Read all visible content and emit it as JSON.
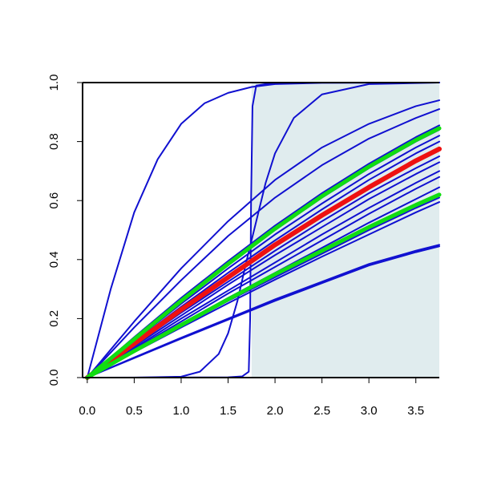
{
  "chart_data": {
    "type": "line",
    "title": "",
    "xlabel": "",
    "ylabel": "",
    "xlim": [
      -0.05,
      3.75
    ],
    "ylim": [
      0,
      1
    ],
    "xticks": [
      0,
      0.5,
      1,
      1.5,
      2,
      2.5,
      3,
      3.5
    ],
    "xtick_labels": [
      "0.0",
      "0.5",
      "1.0",
      "1.5",
      "2.0",
      "2.5",
      "3.0",
      "3.5"
    ],
    "yticks": [
      0,
      0.2,
      0.4,
      0.6,
      0.8,
      1.0
    ],
    "ytick_labels": [
      "0.0",
      "0.2",
      "0.4",
      "0.6",
      "0.8",
      "1.0"
    ],
    "legend": "none",
    "grid": false,
    "shaded_region": {
      "x_from": 1.75,
      "x_to": 3.75,
      "color": "#e0ecee"
    },
    "series_colors": {
      "blue": "#1010d0",
      "red": "#ee1111",
      "green": "#11dd11"
    },
    "series": [
      {
        "color": "blue",
        "points": [
          [
            0,
            0
          ],
          [
            0.25,
            0.3
          ],
          [
            0.5,
            0.56
          ],
          [
            0.75,
            0.74
          ],
          [
            1.0,
            0.86
          ],
          [
            1.25,
            0.93
          ],
          [
            1.5,
            0.965
          ],
          [
            1.75,
            0.985
          ],
          [
            2.0,
            0.995
          ],
          [
            2.5,
            0.999
          ],
          [
            3.75,
            1.0
          ]
        ]
      },
      {
        "color": "blue",
        "points": [
          [
            0,
            0
          ],
          [
            1.5,
            0.001
          ],
          [
            1.65,
            0.004
          ],
          [
            1.72,
            0.02
          ],
          [
            1.735,
            0.2
          ],
          [
            1.745,
            0.6
          ],
          [
            1.76,
            0.92
          ],
          [
            1.8,
            0.99
          ],
          [
            2.0,
            1.0
          ],
          [
            3.75,
            1.0
          ]
        ]
      },
      {
        "color": "blue",
        "points": [
          [
            0,
            0
          ],
          [
            0.5,
            0
          ],
          [
            1.0,
            0.003
          ],
          [
            1.2,
            0.02
          ],
          [
            1.4,
            0.08
          ],
          [
            1.5,
            0.15
          ],
          [
            1.6,
            0.26
          ],
          [
            1.7,
            0.4
          ],
          [
            1.8,
            0.53
          ],
          [
            1.9,
            0.66
          ],
          [
            2.0,
            0.76
          ],
          [
            2.2,
            0.88
          ],
          [
            2.5,
            0.96
          ],
          [
            3.0,
            0.995
          ],
          [
            3.75,
            1.0
          ]
        ]
      },
      {
        "color": "blue",
        "points": [
          [
            0,
            0
          ],
          [
            0.5,
            0.17
          ],
          [
            1.0,
            0.33
          ],
          [
            1.5,
            0.48
          ],
          [
            2.0,
            0.61
          ],
          [
            2.5,
            0.72
          ],
          [
            3.0,
            0.81
          ],
          [
            3.5,
            0.88
          ],
          [
            3.75,
            0.91
          ]
        ]
      },
      {
        "color": "blue",
        "points": [
          [
            0,
            0
          ],
          [
            0.5,
            0.19
          ],
          [
            1.0,
            0.37
          ],
          [
            1.5,
            0.53
          ],
          [
            2.0,
            0.67
          ],
          [
            2.5,
            0.78
          ],
          [
            3.0,
            0.86
          ],
          [
            3.5,
            0.92
          ],
          [
            3.75,
            0.94
          ]
        ]
      },
      {
        "color": "blue",
        "points": [
          [
            0,
            0
          ],
          [
            0.5,
            0.13
          ],
          [
            1.0,
            0.26
          ],
          [
            1.5,
            0.38
          ],
          [
            2.0,
            0.5
          ],
          [
            2.5,
            0.61
          ],
          [
            3.0,
            0.71
          ],
          [
            3.5,
            0.8
          ],
          [
            3.75,
            0.84
          ]
        ]
      },
      {
        "color": "blue",
        "points": [
          [
            0,
            0
          ],
          [
            0.5,
            0.137
          ],
          [
            1.0,
            0.27
          ],
          [
            1.5,
            0.395
          ],
          [
            2.0,
            0.515
          ],
          [
            2.5,
            0.625
          ],
          [
            3.0,
            0.725
          ],
          [
            3.5,
            0.815
          ],
          [
            3.75,
            0.855
          ]
        ]
      },
      {
        "color": "blue",
        "points": [
          [
            0,
            0
          ],
          [
            0.5,
            0.125
          ],
          [
            1.0,
            0.25
          ],
          [
            1.5,
            0.37
          ],
          [
            2.0,
            0.485
          ],
          [
            2.5,
            0.59
          ],
          [
            3.0,
            0.69
          ],
          [
            3.5,
            0.78
          ],
          [
            3.75,
            0.82
          ]
        ]
      },
      {
        "color": "blue",
        "points": [
          [
            0,
            0
          ],
          [
            0.5,
            0.12
          ],
          [
            1.0,
            0.24
          ],
          [
            1.5,
            0.355
          ],
          [
            2.0,
            0.465
          ],
          [
            2.5,
            0.57
          ],
          [
            3.0,
            0.67
          ],
          [
            3.5,
            0.76
          ],
          [
            3.75,
            0.8
          ]
        ]
      },
      {
        "color": "blue",
        "points": [
          [
            0,
            0
          ],
          [
            0.5,
            0.11
          ],
          [
            1.0,
            0.22
          ],
          [
            1.5,
            0.325
          ],
          [
            2.0,
            0.43
          ],
          [
            2.5,
            0.53
          ],
          [
            3.0,
            0.625
          ],
          [
            3.5,
            0.71
          ],
          [
            3.75,
            0.75
          ]
        ]
      },
      {
        "color": "blue",
        "points": [
          [
            0,
            0
          ],
          [
            0.5,
            0.106
          ],
          [
            1.0,
            0.21
          ],
          [
            1.5,
            0.315
          ],
          [
            2.0,
            0.415
          ],
          [
            2.5,
            0.51
          ],
          [
            3.0,
            0.605
          ],
          [
            3.5,
            0.69
          ],
          [
            3.75,
            0.73
          ]
        ]
      },
      {
        "color": "blue",
        "points": [
          [
            0,
            0
          ],
          [
            0.5,
            0.1
          ],
          [
            1.0,
            0.2
          ],
          [
            1.5,
            0.295
          ],
          [
            2.0,
            0.39
          ],
          [
            2.5,
            0.485
          ],
          [
            3.0,
            0.575
          ],
          [
            3.5,
            0.66
          ],
          [
            3.75,
            0.7
          ]
        ]
      },
      {
        "color": "blue",
        "points": [
          [
            0,
            0
          ],
          [
            0.5,
            0.096
          ],
          [
            1.0,
            0.19
          ],
          [
            1.5,
            0.285
          ],
          [
            2.0,
            0.375
          ],
          [
            2.5,
            0.465
          ],
          [
            3.0,
            0.555
          ],
          [
            3.5,
            0.64
          ],
          [
            3.75,
            0.68
          ]
        ]
      },
      {
        "color": "blue",
        "points": [
          [
            0,
            0
          ],
          [
            0.5,
            0.092
          ],
          [
            1.0,
            0.182
          ],
          [
            1.5,
            0.27
          ],
          [
            2.0,
            0.355
          ],
          [
            2.5,
            0.44
          ],
          [
            3.0,
            0.525
          ],
          [
            3.5,
            0.605
          ],
          [
            3.75,
            0.645
          ]
        ]
      },
      {
        "color": "blue",
        "points": [
          [
            0,
            0
          ],
          [
            0.5,
            0.088
          ],
          [
            1.0,
            0.175
          ],
          [
            1.5,
            0.26
          ],
          [
            2.0,
            0.34
          ],
          [
            2.5,
            0.42
          ],
          [
            3.0,
            0.5
          ],
          [
            3.5,
            0.575
          ],
          [
            3.75,
            0.61
          ]
        ]
      },
      {
        "color": "blue",
        "points": [
          [
            0,
            0
          ],
          [
            0.5,
            0.086
          ],
          [
            1.0,
            0.17
          ],
          [
            1.5,
            0.252
          ],
          [
            2.0,
            0.332
          ],
          [
            2.5,
            0.41
          ],
          [
            3.0,
            0.485
          ],
          [
            3.5,
            0.56
          ],
          [
            3.75,
            0.595
          ]
        ]
      },
      {
        "color": "blue",
        "points": [
          [
            0,
            0
          ],
          [
            0.5,
            0.068
          ],
          [
            1.0,
            0.135
          ],
          [
            1.5,
            0.2
          ],
          [
            2.0,
            0.265
          ],
          [
            2.5,
            0.325
          ],
          [
            3.0,
            0.385
          ],
          [
            3.5,
            0.43
          ],
          [
            3.75,
            0.45
          ]
        ]
      },
      {
        "color": "blue",
        "points": [
          [
            0,
            0
          ],
          [
            0.5,
            0.066
          ],
          [
            1.0,
            0.132
          ],
          [
            1.5,
            0.196
          ],
          [
            2.0,
            0.26
          ],
          [
            2.5,
            0.32
          ],
          [
            3.0,
            0.38
          ],
          [
            3.5,
            0.425
          ],
          [
            3.75,
            0.445
          ]
        ]
      },
      {
        "color": "red",
        "points": [
          [
            0,
            0
          ],
          [
            0.5,
            0.115
          ],
          [
            1.0,
            0.23
          ],
          [
            1.5,
            0.34
          ],
          [
            2.0,
            0.45
          ],
          [
            2.5,
            0.55
          ],
          [
            3.0,
            0.645
          ],
          [
            3.5,
            0.735
          ],
          [
            3.75,
            0.775
          ]
        ]
      },
      {
        "color": "green",
        "points": [
          [
            0,
            0
          ],
          [
            0.5,
            0.13
          ],
          [
            1.0,
            0.26
          ],
          [
            1.5,
            0.385
          ],
          [
            2.0,
            0.505
          ],
          [
            2.5,
            0.615
          ],
          [
            3.0,
            0.715
          ],
          [
            3.5,
            0.805
          ],
          [
            3.75,
            0.845
          ]
        ]
      },
      {
        "color": "green",
        "points": [
          [
            0,
            0
          ],
          [
            0.5,
            0.09
          ],
          [
            1.0,
            0.178
          ],
          [
            1.5,
            0.265
          ],
          [
            2.0,
            0.35
          ],
          [
            2.5,
            0.43
          ],
          [
            3.0,
            0.51
          ],
          [
            3.5,
            0.585
          ],
          [
            3.75,
            0.62
          ]
        ]
      }
    ]
  }
}
